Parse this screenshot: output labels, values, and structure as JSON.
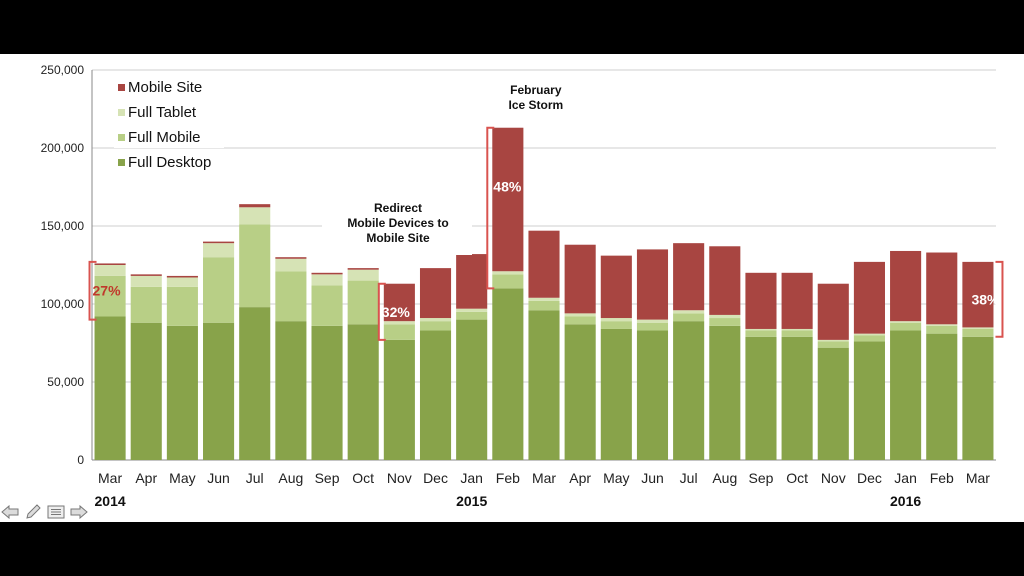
{
  "chart_data": {
    "type": "bar",
    "stacked": true,
    "categories": [
      "Mar",
      "Apr",
      "May",
      "Jun",
      "Jul",
      "Aug",
      "Sep",
      "Oct",
      "Nov",
      "Dec",
      "Jan",
      "Feb",
      "Mar",
      "Apr",
      "May",
      "Jun",
      "Jul",
      "Aug",
      "Sep",
      "Oct",
      "Nov",
      "Dec",
      "Jan",
      "Feb",
      "Mar"
    ],
    "years": [
      {
        "label": "2014",
        "at_index": 0
      },
      {
        "label": "2015",
        "at_index": 10
      },
      {
        "label": "2016",
        "at_index": 22
      }
    ],
    "ylim": [
      0,
      250000
    ],
    "yticks": [
      0,
      50000,
      100000,
      150000,
      200000,
      250000
    ],
    "ytick_labels": [
      "0",
      "50,000",
      "100,000",
      "150,000",
      "200,000",
      "250,000"
    ],
    "grid": true,
    "series": [
      {
        "name": "Full Desktop",
        "color": "#88a34a",
        "values": [
          92000,
          88000,
          86000,
          88000,
          98000,
          89000,
          86000,
          87000,
          77000,
          83000,
          90000,
          110000,
          96000,
          87000,
          84000,
          83000,
          89000,
          86000,
          79000,
          79000,
          72000,
          76000,
          83000,
          81000,
          79000
        ]
      },
      {
        "name": "Full Mobile",
        "color": "#b8cf86",
        "values": [
          26000,
          23000,
          25000,
          42000,
          53000,
          32000,
          26000,
          28000,
          10000,
          6000,
          5000,
          9000,
          6000,
          5000,
          5000,
          5000,
          5000,
          5000,
          4000,
          4000,
          4000,
          4000,
          5000,
          5000,
          5000
        ]
      },
      {
        "name": "Full Tablet",
        "color": "#d6e3b5",
        "values": [
          7000,
          7000,
          6000,
          9000,
          11000,
          8000,
          7000,
          7000,
          2000,
          2000,
          2000,
          2000,
          2000,
          2000,
          2000,
          2000,
          2000,
          2000,
          1000,
          1000,
          1000,
          1000,
          1000,
          1000,
          1000
        ]
      },
      {
        "name": "Mobile Site",
        "color": "#a84541",
        "values": [
          1000,
          1000,
          1000,
          1000,
          2000,
          1000,
          1000,
          1000,
          24000,
          32000,
          35000,
          92000,
          43000,
          44000,
          40000,
          45000,
          43000,
          44000,
          36000,
          36000,
          36000,
          46000,
          45000,
          46000,
          42000
        ]
      }
    ],
    "legend": {
      "placement": "top-left",
      "order": [
        "Mobile Site",
        "Full Tablet",
        "Full Mobile",
        "Full Desktop"
      ]
    },
    "annotations": [
      {
        "text": "Redirect\nMobile Devices to\nMobile Site",
        "at_index": 8
      },
      {
        "text": "February\nIce Storm",
        "at_index": 11
      }
    ],
    "brackets": [
      {
        "label": "27%",
        "at_index": 0,
        "side": "left",
        "range": [
          90000,
          127000
        ],
        "label_color": "#c0392b"
      },
      {
        "label": "32%",
        "at_index": 8,
        "side": "left",
        "range": [
          77000,
          113000
        ],
        "label_color": "#ffffff"
      },
      {
        "label": "48%",
        "at_index": 11,
        "side": "left",
        "range": [
          110000,
          213000
        ],
        "label_color": "#ffffff"
      },
      {
        "label": "38%",
        "at_index": 24,
        "side": "right",
        "range": [
          79000,
          127000
        ],
        "label_color": "#ffffff"
      }
    ]
  },
  "nav": {
    "icons": [
      "arrow-left-icon",
      "pencil-icon",
      "menu-icon",
      "arrow-right-icon"
    ]
  }
}
